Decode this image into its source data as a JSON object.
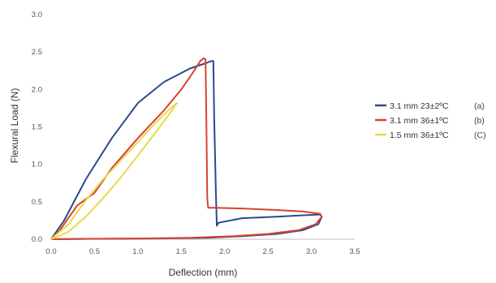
{
  "chart_data": {
    "type": "line",
    "xlabel": "Deflection (mm)",
    "ylabel": "Flexural Load (N)",
    "xlim": [
      0,
      3.5
    ],
    "ylim": [
      0,
      3.0
    ],
    "x_ticks": [
      "0.0",
      "0.5",
      "1.0",
      "1.5",
      "2.0",
      "2.5",
      "3.0",
      "3.5"
    ],
    "y_ticks": [
      "0.0",
      "0.5",
      "1.0",
      "1.5",
      "2.0",
      "2.5",
      "3.0"
    ],
    "grid": "none",
    "legend_position": "right",
    "series": [
      {
        "name": "3.1 mm 23±2ºC",
        "tag": "(a)",
        "color": "#2a4a8c",
        "points": [
          [
            0,
            0
          ],
          [
            0.15,
            0.25
          ],
          [
            0.4,
            0.8
          ],
          [
            0.7,
            1.35
          ],
          [
            1.0,
            1.82
          ],
          [
            1.3,
            2.1
          ],
          [
            1.6,
            2.28
          ],
          [
            1.78,
            2.35
          ],
          [
            1.85,
            2.38
          ],
          [
            1.87,
            2.38
          ],
          [
            1.88,
            1.6
          ],
          [
            1.9,
            0.6
          ],
          [
            1.91,
            0.18
          ],
          [
            1.93,
            0.22
          ],
          [
            2.2,
            0.28
          ],
          [
            2.6,
            0.3
          ],
          [
            2.9,
            0.32
          ],
          [
            3.1,
            0.33
          ],
          [
            3.12,
            0.3
          ],
          [
            3.08,
            0.2
          ],
          [
            2.9,
            0.12
          ],
          [
            2.6,
            0.07
          ],
          [
            2.2,
            0.04
          ],
          [
            1.8,
            0.02
          ],
          [
            1.2,
            0.01
          ],
          [
            0.5,
            0.005
          ],
          [
            0,
            0
          ]
        ]
      },
      {
        "name": "3.1 mm 36±1ºC",
        "tag": "(b)",
        "color": "#d9412e",
        "points": [
          [
            0,
            0
          ],
          [
            0.1,
            0.12
          ],
          [
            0.3,
            0.45
          ],
          [
            0.5,
            0.62
          ],
          [
            0.7,
            0.95
          ],
          [
            1.0,
            1.35
          ],
          [
            1.3,
            1.72
          ],
          [
            1.5,
            2.0
          ],
          [
            1.62,
            2.2
          ],
          [
            1.72,
            2.38
          ],
          [
            1.76,
            2.42
          ],
          [
            1.78,
            2.4
          ],
          [
            1.79,
            1.5
          ],
          [
            1.8,
            0.55
          ],
          [
            1.81,
            0.42
          ],
          [
            1.9,
            0.42
          ],
          [
            2.2,
            0.41
          ],
          [
            2.6,
            0.39
          ],
          [
            2.9,
            0.37
          ],
          [
            3.1,
            0.34
          ],
          [
            3.12,
            0.3
          ],
          [
            3.05,
            0.2
          ],
          [
            2.85,
            0.12
          ],
          [
            2.5,
            0.07
          ],
          [
            2.1,
            0.04
          ],
          [
            1.6,
            0.02
          ],
          [
            1.0,
            0.01
          ],
          [
            0.4,
            0.005
          ],
          [
            0,
            0
          ]
        ]
      },
      {
        "name": "1.5 mm 36±1ºC",
        "tag": "(C)",
        "color": "#e8d94a",
        "points": [
          [
            0,
            0
          ],
          [
            0.2,
            0.2
          ],
          [
            0.4,
            0.52
          ],
          [
            0.6,
            0.8
          ],
          [
            0.8,
            1.05
          ],
          [
            1.0,
            1.3
          ],
          [
            1.2,
            1.55
          ],
          [
            1.35,
            1.72
          ],
          [
            1.45,
            1.82
          ],
          [
            1.38,
            1.7
          ],
          [
            1.2,
            1.42
          ],
          [
            1.0,
            1.12
          ],
          [
            0.8,
            0.82
          ],
          [
            0.6,
            0.55
          ],
          [
            0.4,
            0.3
          ],
          [
            0.2,
            0.1
          ],
          [
            0,
            0
          ]
        ]
      }
    ]
  }
}
